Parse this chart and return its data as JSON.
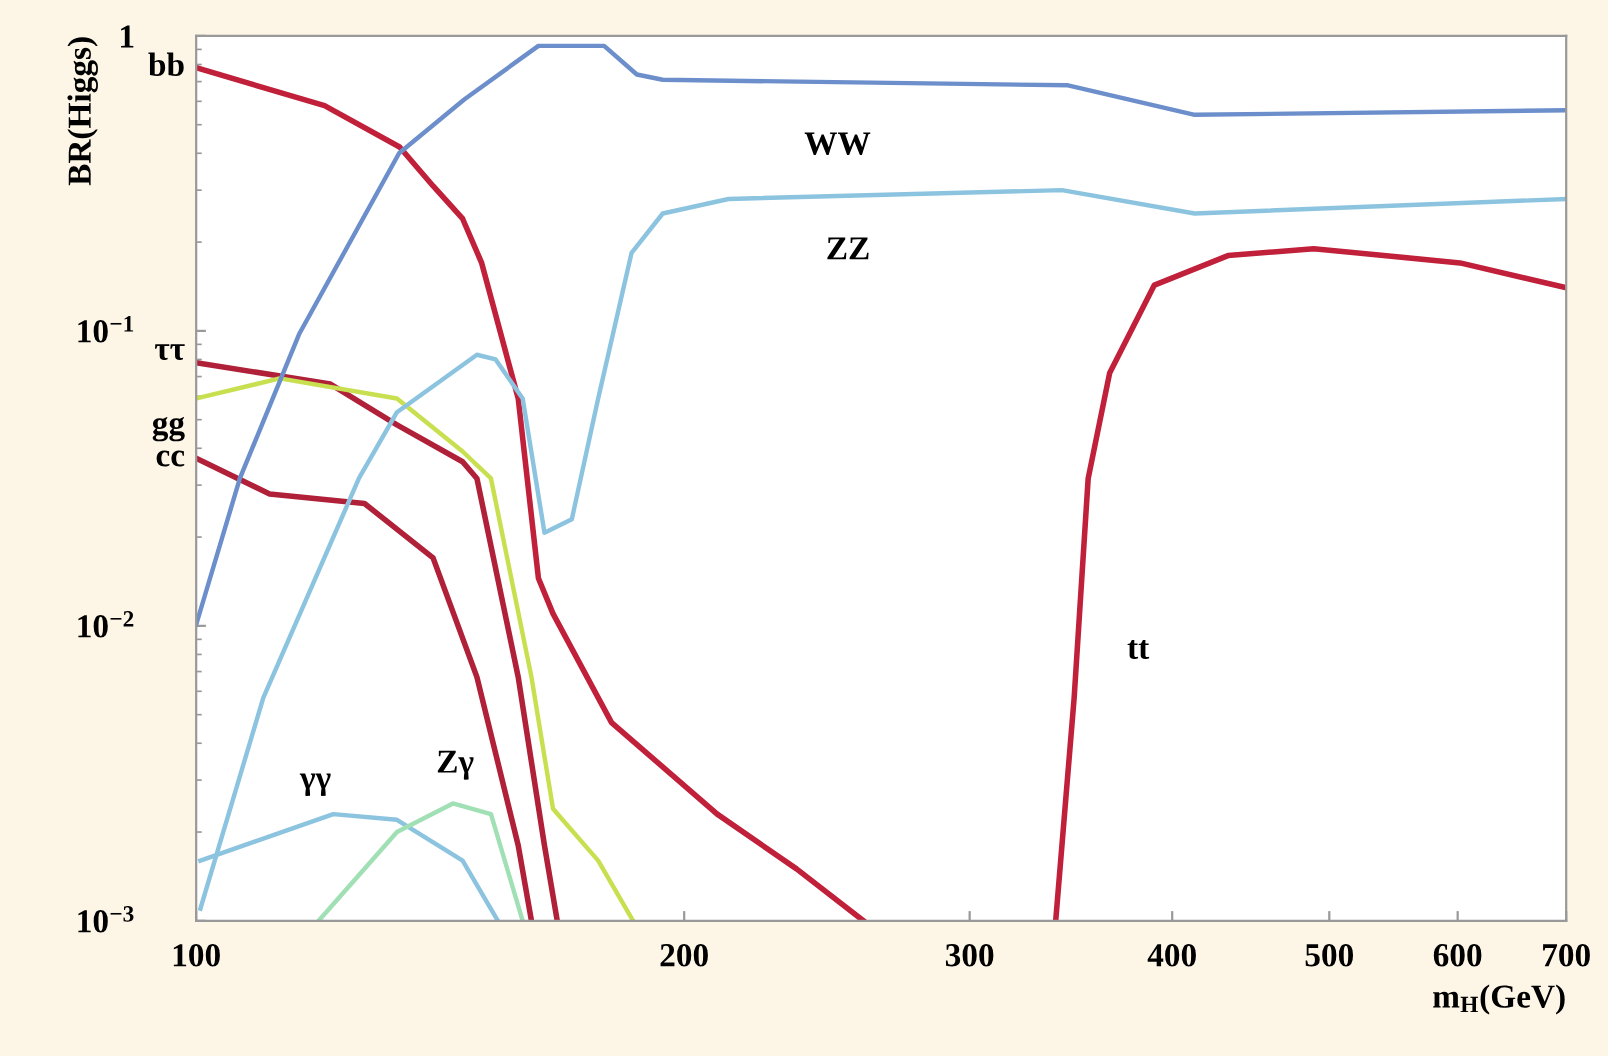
{
  "chart_data": {
    "type": "line",
    "xlabel": "m$_{H}$(GeV)",
    "ylabel": "BR(Higgs)",
    "log": "xy",
    "grid": false,
    "legend": false,
    "marker": "none",
    "line_style": "solid",
    "xlim": [
      100,
      700
    ],
    "xticks": [
      100,
      200,
      300,
      400,
      500,
      600,
      700
    ],
    "ylim": [
      0.001,
      1
    ],
    "yticks": [
      {
        "value": 0.001,
        "label": "10$^{−3}$"
      },
      {
        "value": 0.01,
        "label": "10$^{−2}$"
      },
      {
        "value": 0.1,
        "label": "10$^{−1}$"
      },
      {
        "value": 1,
        "label": "1"
      }
    ],
    "series": [
      {
        "name": "bb",
        "color": "#c0203a",
        "x": [
          100,
          120,
          133.5,
          140,
          146,
          150,
          158,
          162.6,
          166,
          180.4,
          209.6,
          234.6,
          258
        ],
        "values": [
          0.78,
          0.58,
          0.42,
          0.31,
          0.24,
          0.17,
          0.059,
          0.0145,
          0.011,
          0.0047,
          0.0023,
          0.0015,
          0.001
        ]
      },
      {
        "name": "ττ",
        "color": "#b02038",
        "x": [
          100,
          121,
          133,
          146,
          149,
          158,
          164,
          167
        ],
        "values": [
          0.078,
          0.066,
          0.048,
          0.036,
          0.0316,
          0.0067,
          0.0018,
          0.001
        ]
      },
      {
        "name": "gg",
        "color": "#c8e050",
        "x": [
          100,
          112.6,
          133,
          146,
          152,
          161,
          166,
          177,
          186
        ],
        "values": [
          0.059,
          0.069,
          0.059,
          0.039,
          0.0316,
          0.0067,
          0.0024,
          0.0016,
          0.001
        ]
      },
      {
        "name": "cc",
        "color": "#b02038",
        "x": [
          100,
          111,
          127,
          140,
          149,
          158,
          161
        ],
        "values": [
          0.037,
          0.028,
          0.026,
          0.017,
          0.0067,
          0.0018,
          0.001
        ]
      },
      {
        "name": "WW",
        "color": "#6c8fcc",
        "x": [
          100,
          106.4,
          115.8,
          133.4,
          146.4,
          162.6,
          178.5,
          187,
          194,
          345,
          413,
          700
        ],
        "values": [
          0.0101,
          0.0316,
          0.098,
          0.4,
          0.61,
          0.925,
          0.925,
          0.74,
          0.71,
          0.68,
          0.54,
          0.56
        ]
      },
      {
        "name": "ZZ",
        "color": "#8cc4e0",
        "x": [
          100.6,
          110,
          126,
          133,
          149,
          153,
          159,
          164,
          170.5,
          177,
          185.6,
          194,
          213,
          342,
          413,
          700
        ],
        "values": [
          0.0011,
          0.0057,
          0.0316,
          0.053,
          0.083,
          0.08,
          0.059,
          0.0207,
          0.023,
          0.059,
          0.184,
          0.25,
          0.28,
          0.3,
          0.25,
          0.28
        ]
      },
      {
        "name": "tt",
        "color": "#c0203a",
        "x": [
          339,
          348,
          355,
          366,
          390,
          433,
          489,
          602,
          700
        ],
        "values": [
          0.001,
          0.0057,
          0.0316,
          0.072,
          0.143,
          0.18,
          0.19,
          0.17,
          0.14
        ]
      },
      {
        "name": "γγ",
        "color": "#8cc4e0",
        "x": [
          100.6,
          121.5,
          133,
          146,
          153.5
        ],
        "values": [
          0.0016,
          0.0023,
          0.0022,
          0.0016,
          0.001
        ]
      },
      {
        "name": "Zγ",
        "color": "#a0e0b4",
        "x": [
          119,
          133,
          144,
          152,
          159
        ],
        "values": [
          0.001,
          0.002,
          0.0025,
          0.0023,
          0.001
        ]
      }
    ]
  }
}
